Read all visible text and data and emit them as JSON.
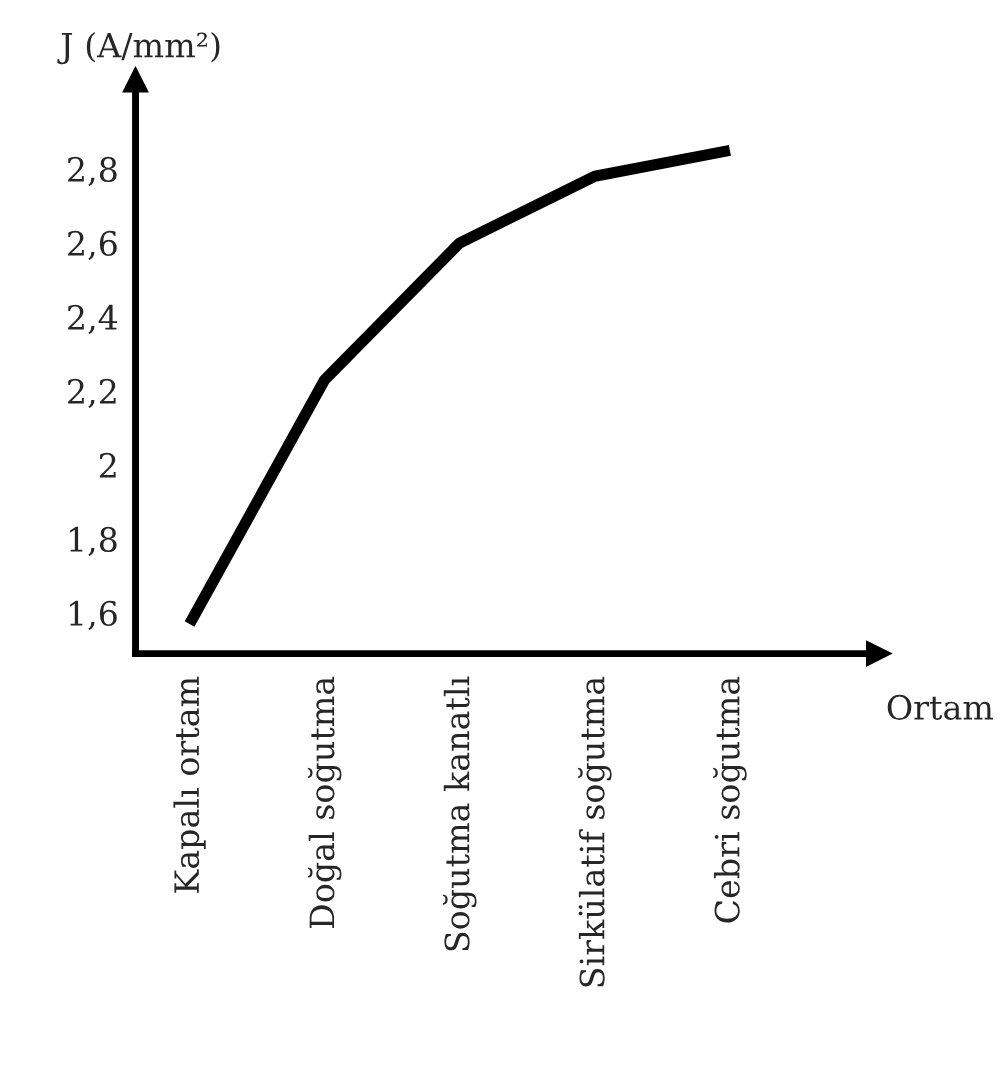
{
  "chart_data": {
    "type": "line",
    "xlabel": "Ortam",
    "ylabel": "J (A/mm²)",
    "categories": [
      "Kapalı ortam",
      "Doğal soğutma",
      "Soğutma kanatlı",
      "Sirkülatif soğutma",
      "Cebri soğutma"
    ],
    "series": [
      {
        "color": "#000000",
        "values": [
          1.57,
          2.23,
          2.6,
          2.78,
          2.85
        ]
      }
    ],
    "ylim": [
      1.49,
      3.04
    ],
    "yticks": [
      {
        "value": 1.6,
        "label": "1,6"
      },
      {
        "value": 1.8,
        "label": "1,8"
      },
      {
        "value": 2,
        "label": "2"
      },
      {
        "value": 2.2,
        "label": "2,2"
      },
      {
        "value": 2.4,
        "label": "2,4"
      },
      {
        "value": 2.6,
        "label": "2,6"
      },
      {
        "value": 2.8,
        "label": "2,8"
      }
    ],
    "grid": false,
    "legend": false,
    "marker": "none",
    "line_style": "solid"
  }
}
